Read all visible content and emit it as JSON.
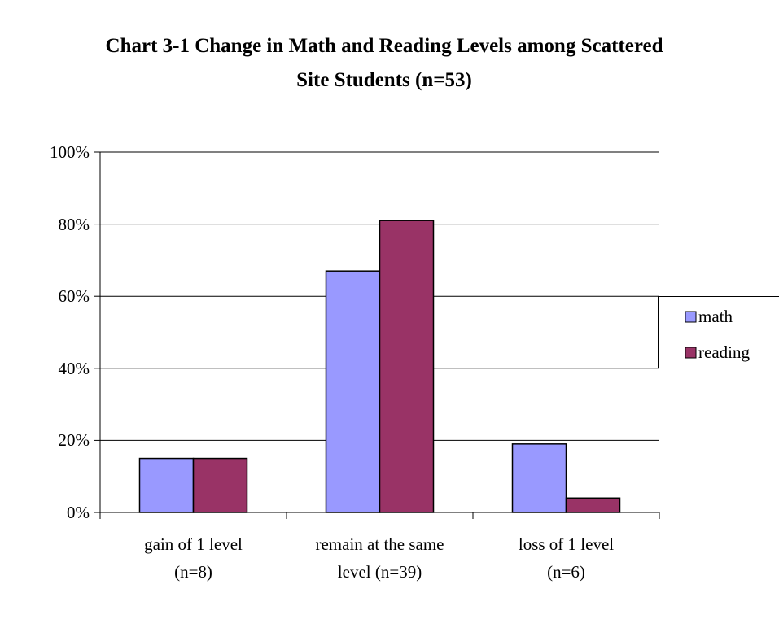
{
  "chart_data": {
    "type": "bar",
    "title": "Chart 3-1 Change in Math and Reading Levels among Scattered Site Students (n=53)",
    "categories": [
      "gain of 1 level\n(n=8)",
      "remain at the same\nlevel (n=39)",
      "loss of 1 level\n(n=6)"
    ],
    "series": [
      {
        "name": "math",
        "color": "#9999ff",
        "values": [
          15,
          67,
          19
        ]
      },
      {
        "name": "reading",
        "color": "#993366",
        "values": [
          15,
          81,
          4
        ]
      }
    ],
    "ylim": [
      0,
      100
    ],
    "yticks": [
      {
        "value": 0,
        "label": "0%"
      },
      {
        "value": 20,
        "label": "20%"
      },
      {
        "value": 40,
        "label": "40%"
      },
      {
        "value": 60,
        "label": "60%"
      },
      {
        "value": 80,
        "label": "80%"
      },
      {
        "value": 100,
        "label": "100%"
      }
    ],
    "grid": true,
    "legend": "right"
  }
}
